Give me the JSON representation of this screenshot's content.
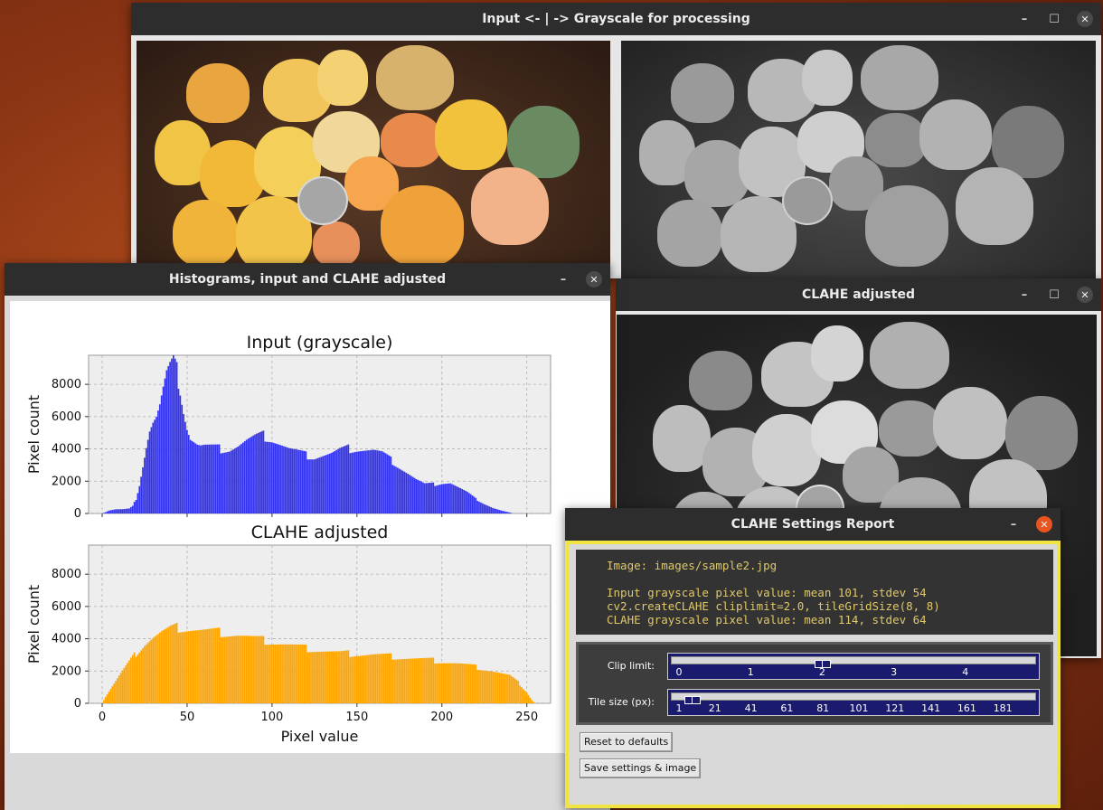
{
  "windows": {
    "input_gray": {
      "title": "Input <- | -> Grayscale for processing"
    },
    "histograms": {
      "title": "Histograms, input and CLAHE adjusted"
    },
    "clahe": {
      "title": "CLAHE adjusted"
    },
    "report": {
      "title": "CLAHE Settings Report"
    }
  },
  "icons": {
    "minimize": "minimize-icon",
    "maximize": "maximize-icon",
    "close": "close-icon"
  },
  "report": {
    "image_line": "Image: images/sample2.jpg",
    "input_stats": "Input grayscale pixel value: mean 101, stdev 54",
    "clahe_call": "cv2.createCLAHE cliplimit=2.0, tileGridSize(8, 8)",
    "clahe_stats": "CLAHE grayscale pixel value: mean 114, stdev 64",
    "clip_label": "Clip limit:",
    "tile_label": "Tile size (px):",
    "clip_ticks": [
      "0",
      "1",
      "2",
      "3",
      "4"
    ],
    "tile_ticks": [
      "1",
      "21",
      "41",
      "61",
      "81",
      "101",
      "121",
      "141",
      "161",
      "181"
    ],
    "clip_value": 2.0,
    "clip_range": [
      0,
      5
    ],
    "tile_value": 8,
    "tile_range": [
      1,
      200
    ],
    "reset_button": "Reset to defaults",
    "save_button": "Save settings & image"
  },
  "colors": {
    "input_hist": "#3333ee",
    "clahe_hist": "#ffa500",
    "report_border": "#f0e442",
    "console_text": "#e0c86a"
  },
  "chart_data": [
    {
      "type": "bar",
      "title": "Input (grayscale)",
      "ylabel": "Pixel count",
      "xlabel": "",
      "xlim": [
        -8,
        264
      ],
      "ylim": [
        0,
        9800
      ],
      "yticks": [
        0,
        2000,
        4000,
        6000,
        8000
      ],
      "xticks": [
        0,
        50,
        100,
        150,
        200,
        250
      ],
      "xtick_labels": [],
      "grid": true,
      "color": "#3333ee",
      "profile": [
        [
          0,
          0
        ],
        [
          2,
          80
        ],
        [
          4,
          180
        ],
        [
          8,
          260
        ],
        [
          12,
          260
        ],
        [
          16,
          300
        ],
        [
          18,
          450
        ],
        [
          20,
          900
        ],
        [
          22,
          1800
        ],
        [
          24,
          3000
        ],
        [
          26,
          4200
        ],
        [
          28,
          5200
        ],
        [
          30,
          5700
        ],
        [
          32,
          6000
        ],
        [
          34,
          6700
        ],
        [
          36,
          7700
        ],
        [
          38,
          8600
        ],
        [
          40,
          9000
        ],
        [
          42,
          9300
        ],
        [
          44,
          8800
        ],
        [
          46,
          7800
        ],
        [
          48,
          6500
        ],
        [
          50,
          5400
        ],
        [
          52,
          4700
        ],
        [
          54,
          4500
        ],
        [
          56,
          4300
        ],
        [
          58,
          4200
        ],
        [
          60,
          4200
        ],
        [
          65,
          4100
        ],
        [
          70,
          4000
        ],
        [
          75,
          4000
        ],
        [
          80,
          4200
        ],
        [
          85,
          4500
        ],
        [
          90,
          4700
        ],
        [
          95,
          4800
        ],
        [
          100,
          4600
        ],
        [
          105,
          4300
        ],
        [
          110,
          4000
        ],
        [
          115,
          3800
        ],
        [
          120,
          3600
        ],
        [
          125,
          3500
        ],
        [
          130,
          3600
        ],
        [
          135,
          3700
        ],
        [
          140,
          3900
        ],
        [
          145,
          4000
        ],
        [
          150,
          4000
        ],
        [
          155,
          3950
        ],
        [
          160,
          3900
        ],
        [
          165,
          3700
        ],
        [
          170,
          3300
        ],
        [
          175,
          2900
        ],
        [
          180,
          2500
        ],
        [
          185,
          2100
        ],
        [
          190,
          1800
        ],
        [
          195,
          1800
        ],
        [
          200,
          1900
        ],
        [
          205,
          1900
        ],
        [
          210,
          1600
        ],
        [
          215,
          1300
        ],
        [
          220,
          900
        ],
        [
          225,
          600
        ],
        [
          230,
          350
        ],
        [
          235,
          180
        ],
        [
          240,
          60
        ],
        [
          242,
          0
        ],
        [
          255,
          0
        ]
      ]
    },
    {
      "type": "bar",
      "title": "CLAHE adjusted",
      "ylabel": "Pixel count",
      "xlabel": "Pixel value",
      "xlim": [
        -8,
        264
      ],
      "ylim": [
        0,
        9800
      ],
      "yticks": [
        0,
        2000,
        4000,
        6000,
        8000
      ],
      "xticks": [
        0,
        50,
        100,
        150,
        200,
        250
      ],
      "xtick_labels": [
        "0",
        "50",
        "100",
        "150",
        "200",
        "250"
      ],
      "grid": true,
      "color": "#ffa500",
      "profile": [
        [
          0,
          0
        ],
        [
          2,
          400
        ],
        [
          5,
          900
        ],
        [
          10,
          1700
        ],
        [
          15,
          2400
        ],
        [
          20,
          3100
        ],
        [
          25,
          3700
        ],
        [
          30,
          4100
        ],
        [
          35,
          4400
        ],
        [
          40,
          4600
        ],
        [
          45,
          4700
        ],
        [
          50,
          4650
        ],
        [
          60,
          4500
        ],
        [
          70,
          4400
        ],
        [
          80,
          4250
        ],
        [
          90,
          4000
        ],
        [
          100,
          3800
        ],
        [
          110,
          3600
        ],
        [
          120,
          3400
        ],
        [
          130,
          3250
        ],
        [
          140,
          3100
        ],
        [
          150,
          3050
        ],
        [
          160,
          3000
        ],
        [
          170,
          2900
        ],
        [
          180,
          2800
        ],
        [
          190,
          2700
        ],
        [
          200,
          2600
        ],
        [
          210,
          2450
        ],
        [
          220,
          2250
        ],
        [
          230,
          2000
        ],
        [
          240,
          1700
        ],
        [
          245,
          1300
        ],
        [
          250,
          700
        ],
        [
          253,
          200
        ],
        [
          255,
          0
        ]
      ]
    }
  ]
}
